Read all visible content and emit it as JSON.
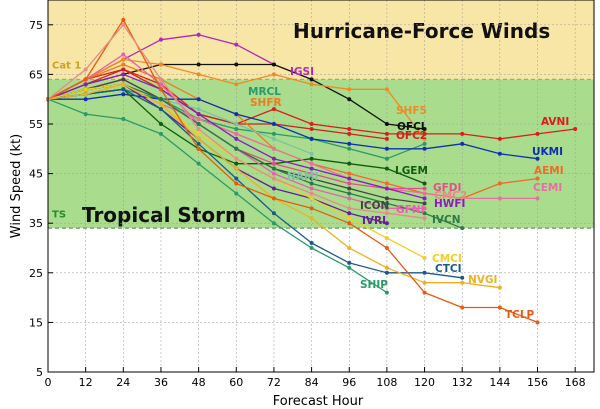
{
  "chart_data": {
    "type": "line",
    "xlabel": "Forecast Hour",
    "ylabel": "Wind Speed (kt)",
    "xlim": [
      0,
      174
    ],
    "ylim": [
      5,
      80
    ],
    "xticks": [
      0,
      12,
      24,
      36,
      48,
      60,
      72,
      84,
      96,
      108,
      120,
      132,
      144,
      156,
      168
    ],
    "yticks": [
      5,
      15,
      25,
      35,
      45,
      55,
      65,
      75
    ],
    "bands": [
      {
        "name": "Hurricane-Force Winds",
        "from": 64,
        "to": 80,
        "color": "#f8e6a6",
        "label": "Hurricane-Force Winds",
        "small": "Cat 1",
        "small_at": 67,
        "small_color": "#c9a227"
      },
      {
        "name": "Tropical Storm",
        "from": 34,
        "to": 64,
        "color": "#a9dc8c",
        "label": "Tropical Storm",
        "small": "TS",
        "small_at": 37,
        "small_color": "#2a8a2a"
      }
    ],
    "series": [
      {
        "name": "IGSI",
        "color": "#b02ab8",
        "x": [
          0,
          12,
          24,
          36,
          48,
          60,
          72
        ],
        "y": [
          60,
          64,
          68,
          72,
          73,
          71,
          67
        ]
      },
      {
        "name": "OFCI",
        "color": "#101010",
        "x": [
          0,
          12,
          24,
          36,
          48,
          60,
          72,
          84,
          96,
          108,
          120
        ],
        "y": [
          60,
          63,
          65,
          67,
          67,
          67,
          67,
          64,
          60,
          55,
          54
        ]
      },
      {
        "name": "SHF5",
        "color": "#f08a26",
        "x": [
          0,
          12,
          24,
          36,
          48,
          60,
          72,
          84,
          96,
          108,
          120
        ],
        "y": [
          60,
          64,
          68,
          67,
          65,
          63,
          65,
          63,
          62,
          62,
          52
        ]
      },
      {
        "name": "AVNI",
        "color": "#dd1c1c",
        "x": [
          0,
          12,
          24,
          36,
          48,
          60,
          72,
          84,
          96,
          108,
          120,
          132,
          144,
          156,
          168
        ],
        "y": [
          60,
          63,
          66,
          63,
          57,
          55,
          58,
          55,
          54,
          53,
          53,
          53,
          52,
          53,
          54
        ]
      },
      {
        "name": "OFC2",
        "color": "#d02020",
        "x": [
          0,
          12,
          24,
          36,
          48,
          60,
          72,
          84,
          96,
          108
        ],
        "y": [
          60,
          64,
          66,
          62,
          57,
          55,
          55,
          54,
          53,
          52
        ]
      },
      {
        "name": "SHFR",
        "color": "#f07a1e",
        "x": [
          0,
          12,
          24,
          36,
          48,
          60,
          72
        ],
        "y": [
          60,
          64,
          67,
          64,
          60,
          57,
          50
        ]
      },
      {
        "name": "MRCL",
        "color": "#2a9a6a",
        "x": [
          0,
          12,
          24,
          36,
          48,
          60,
          72,
          84,
          96,
          108,
          120
        ],
        "y": [
          60,
          61,
          62,
          60,
          56,
          54,
          53,
          52,
          50,
          48,
          51
        ]
      },
      {
        "name": "UKMI",
        "color": "#1030b0",
        "x": [
          0,
          12,
          24,
          36,
          48,
          60,
          72,
          84,
          96,
          108,
          120,
          132,
          144,
          156
        ],
        "y": [
          60,
          60,
          61,
          60,
          60,
          57,
          55,
          52,
          51,
          50,
          50,
          51,
          49,
          48
        ]
      },
      {
        "name": "LGEM",
        "color": "#105c10",
        "x": [
          0,
          12,
          24,
          36,
          48,
          60,
          72,
          84,
          96,
          108,
          120
        ],
        "y": [
          60,
          61,
          62,
          55,
          50,
          47,
          47,
          48,
          47,
          46,
          43
        ]
      },
      {
        "name": "AEMI",
        "color": "#f06a2a",
        "x": [
          0,
          12,
          24,
          36,
          48,
          60,
          72,
          84,
          96,
          108,
          120,
          132,
          144,
          156
        ],
        "y": [
          60,
          62,
          63,
          59,
          56,
          53,
          50,
          47,
          45,
          43,
          41,
          40,
          43,
          44
        ]
      },
      {
        "name": "CEMI",
        "color": "#e870a0",
        "x": [
          0,
          12,
          24,
          36,
          48,
          60,
          72,
          84,
          96,
          108,
          120,
          132,
          144,
          156
        ],
        "y": [
          60,
          62,
          63,
          59,
          56,
          53,
          50,
          47,
          44,
          42,
          41,
          40,
          40,
          40
        ]
      },
      {
        "name": "NAMI",
        "color": "#7cc2a8",
        "x": [
          0,
          12,
          24,
          36,
          48,
          60,
          72,
          84
        ],
        "y": [
          60,
          62,
          63,
          60,
          58,
          55,
          52,
          49
        ]
      },
      {
        "name": "GFDI",
        "color": "#e0508a",
        "x": [
          0,
          12,
          24,
          36,
          48,
          60,
          72,
          84,
          96,
          108,
          120
        ],
        "y": [
          60,
          62,
          64,
          60,
          55,
          50,
          47,
          45,
          43,
          42,
          42
        ]
      },
      {
        "name": "HWFI",
        "color": "#8a1cc0",
        "x": [
          0,
          12,
          24,
          36,
          48,
          60,
          72,
          84,
          96,
          108,
          120
        ],
        "y": [
          60,
          63,
          65,
          62,
          57,
          52,
          48,
          46,
          44,
          42,
          40
        ]
      },
      {
        "name": "ICON",
        "color": "#444444",
        "x": [
          0,
          12,
          24,
          36,
          48,
          60,
          72,
          84,
          96,
          108,
          120
        ],
        "y": [
          60,
          62,
          64,
          60,
          55,
          50,
          46,
          44,
          42,
          40,
          39
        ]
      },
      {
        "name": "GFNI",
        "color": "#e860b0",
        "x": [
          0,
          12,
          24,
          36,
          48,
          60,
          72,
          84,
          96,
          108,
          120
        ],
        "y": [
          60,
          64,
          69,
          63,
          55,
          50,
          45,
          42,
          40,
          38,
          38
        ]
      },
      {
        "name": "IVRI",
        "color": "#6a1a9a",
        "x": [
          0,
          12,
          24,
          36,
          48,
          60,
          72,
          84,
          96,
          108
        ],
        "y": [
          60,
          62,
          63,
          58,
          52,
          46,
          42,
          40,
          37,
          35
        ]
      },
      {
        "name": "IVCN",
        "color": "#2a7a4a",
        "x": [
          0,
          12,
          24,
          36,
          48,
          60,
          72,
          84,
          96,
          108,
          120,
          132
        ],
        "y": [
          60,
          62,
          63,
          60,
          55,
          50,
          46,
          43,
          41,
          39,
          37,
          34
        ]
      },
      {
        "name": "CMCI",
        "color": "#f0d020",
        "x": [
          0,
          12,
          24,
          36,
          48,
          60,
          72,
          84,
          96,
          108,
          120
        ],
        "y": [
          60,
          62,
          63,
          59,
          53,
          48,
          44,
          40,
          36,
          32,
          28
        ]
      },
      {
        "name": "CTCI",
        "color": "#1a5a8a",
        "x": [
          0,
          12,
          24,
          36,
          48,
          60,
          72,
          84,
          96,
          108,
          120,
          132
        ],
        "y": [
          60,
          61,
          62,
          58,
          51,
          44,
          37,
          31,
          27,
          25,
          25,
          24
        ]
      },
      {
        "name": "SHIP",
        "color": "#2a9a6a",
        "x": [
          0,
          12,
          24,
          36,
          48,
          60,
          72,
          84,
          96,
          108
        ],
        "y": [
          60,
          57,
          56,
          53,
          47,
          41,
          35,
          30,
          26,
          21
        ]
      },
      {
        "name": "NVGI",
        "color": "#f0b020",
        "x": [
          0,
          12,
          24,
          36,
          48,
          60,
          72,
          84,
          96,
          108,
          120,
          132,
          144
        ],
        "y": [
          60,
          61,
          63,
          59,
          52,
          46,
          40,
          36,
          30,
          26,
          23,
          23,
          22
        ]
      },
      {
        "name": "TCLP",
        "color": "#e85a10",
        "x": [
          0,
          12,
          24,
          36,
          48,
          60,
          72,
          84,
          96,
          108,
          120,
          132,
          144,
          156
        ],
        "y": [
          60,
          64,
          76,
          62,
          50,
          43,
          40,
          38,
          35,
          30,
          21,
          18,
          18,
          15
        ]
      },
      {
        "name": "CMC2",
        "color": "#e88a8a",
        "x": [
          0,
          12,
          24,
          36,
          48,
          60,
          72,
          84,
          96,
          108,
          120
        ],
        "y": [
          60,
          66,
          75,
          64,
          54,
          48,
          44,
          41,
          38,
          37,
          36
        ]
      }
    ]
  }
}
